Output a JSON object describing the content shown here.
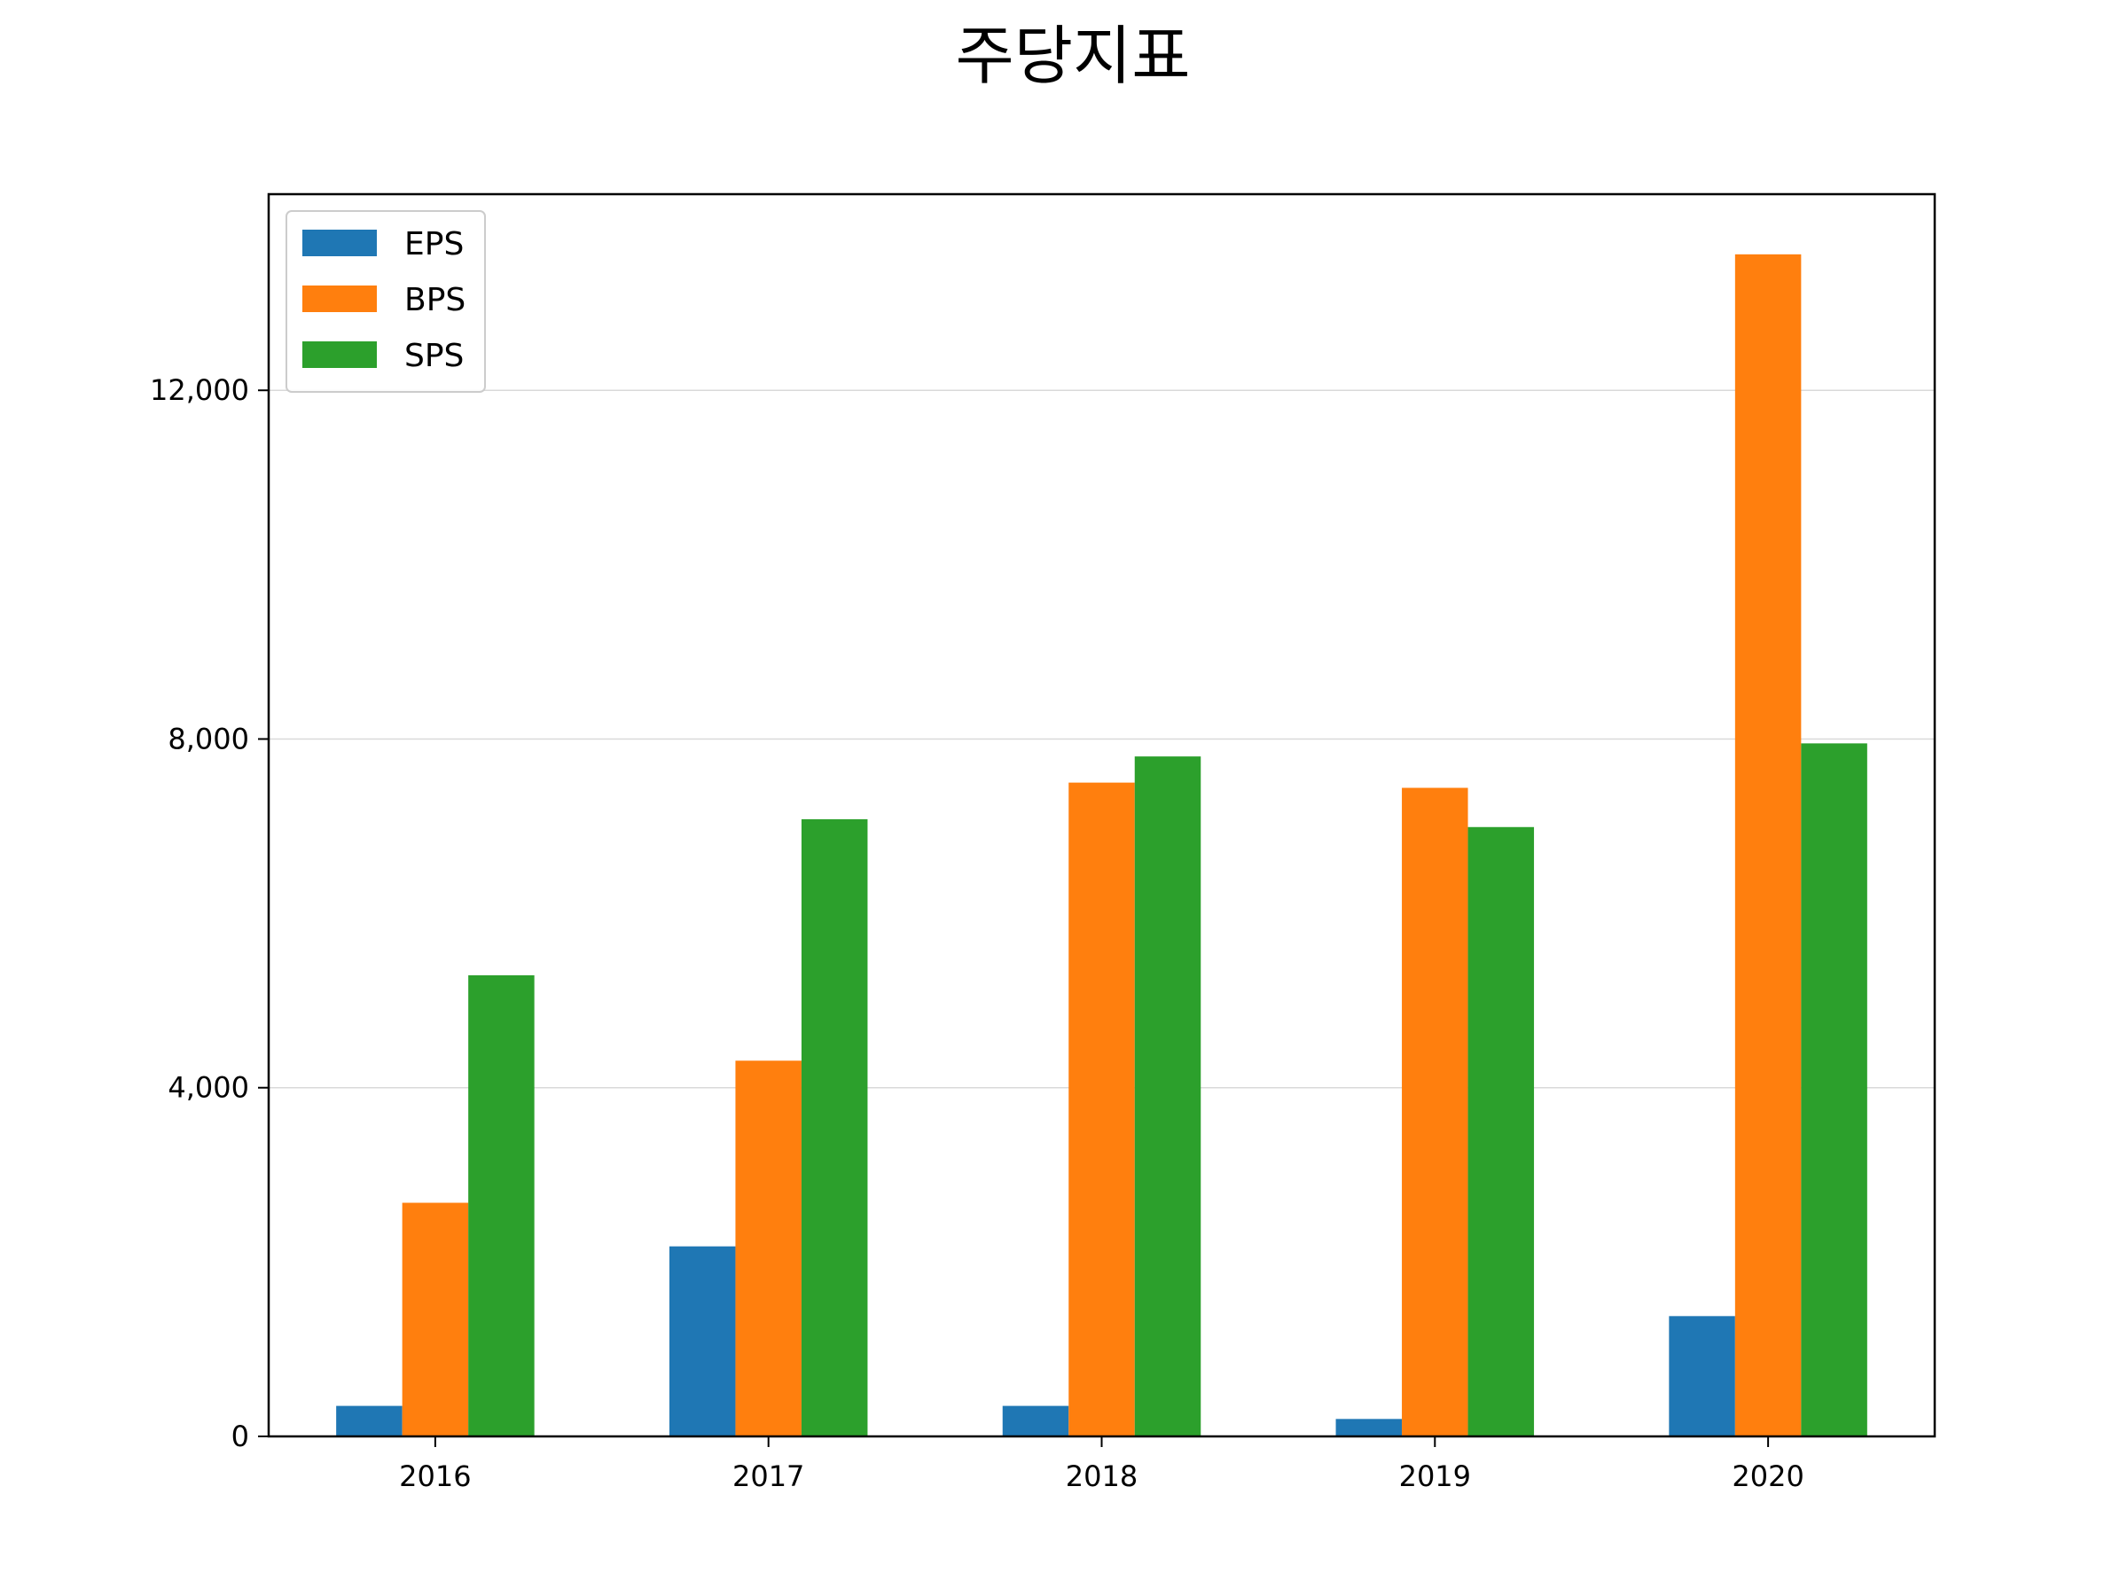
{
  "chart_data": {
    "type": "bar",
    "title": "주당지표",
    "xlabel": "",
    "ylabel": "",
    "categories": [
      "2016",
      "2017",
      "2018",
      "2019",
      "2020"
    ],
    "series": [
      {
        "name": "EPS",
        "color": "#1f77b4",
        "values": [
          350,
          2180,
          350,
          200,
          1380
        ]
      },
      {
        "name": "BPS",
        "color": "#ff7f0e",
        "values": [
          2680,
          4310,
          7500,
          7440,
          13560
        ]
      },
      {
        "name": "SPS",
        "color": "#2ca02c",
        "values": [
          5290,
          7080,
          7800,
          6990,
          7950
        ]
      }
    ],
    "ylim": [
      0,
      14250
    ],
    "yticks": [
      0,
      4000,
      8000,
      12000
    ],
    "ytick_labels": [
      "0",
      "4,000",
      "8,000",
      "12,000"
    ],
    "grid": "horizontal",
    "legend_position": "upper-left"
  }
}
